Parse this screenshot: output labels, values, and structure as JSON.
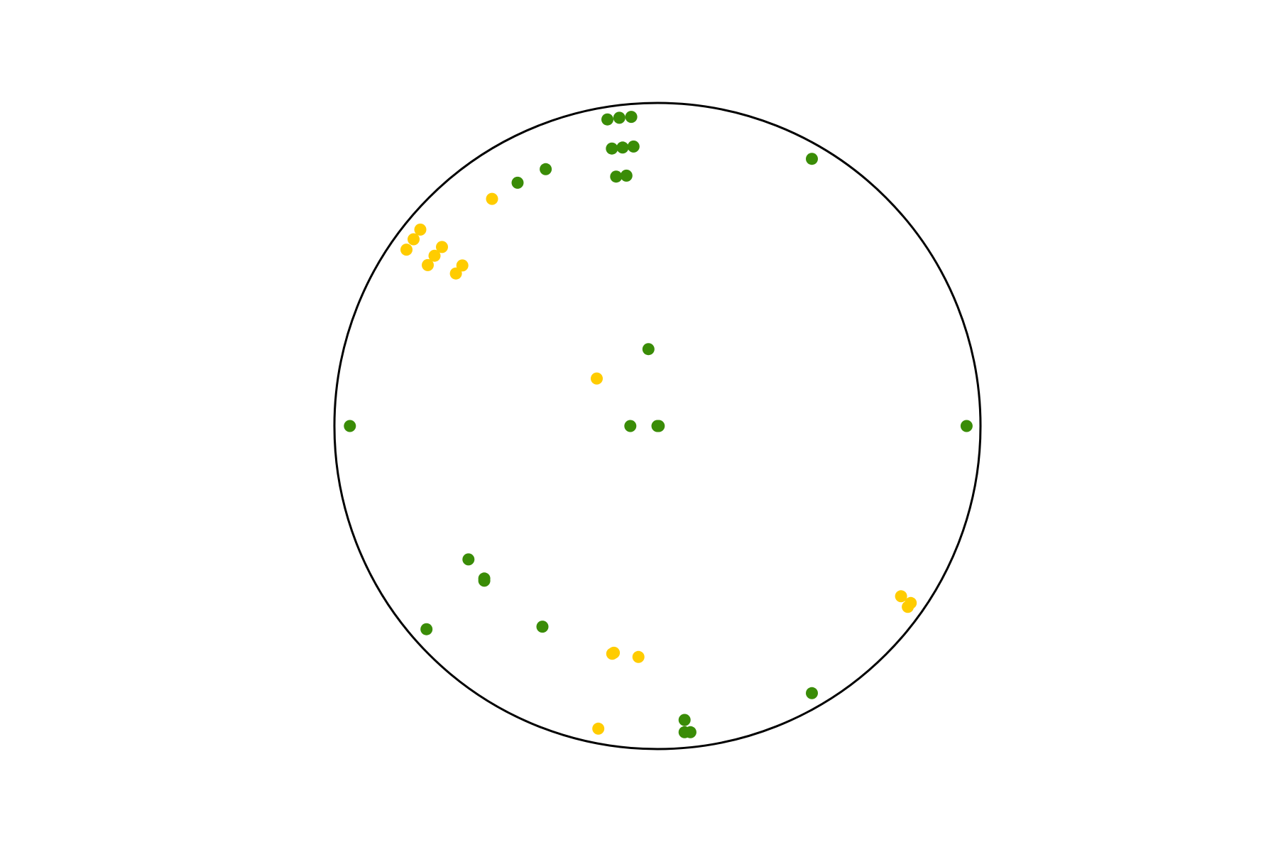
{
  "chart_data": {
    "type": "scatter",
    "coordinate_system": "stereonet",
    "title": "",
    "legend": "none",
    "grid": false,
    "colors": {
      "green": "#3a8c07",
      "yellow": "#ffcc00",
      "outline": "#000000",
      "background": "#ffffff"
    },
    "series": [
      {
        "color_key": "green",
        "points": [
          {
            "x": -0.155,
            "y": 0.949
          },
          {
            "x": -0.118,
            "y": 0.954
          },
          {
            "x": -0.081,
            "y": 0.957
          },
          {
            "x": -0.141,
            "y": 0.859
          },
          {
            "x": -0.108,
            "y": 0.862
          },
          {
            "x": -0.074,
            "y": 0.865
          },
          {
            "x": -0.128,
            "y": 0.772
          },
          {
            "x": -0.096,
            "y": 0.775
          },
          {
            "x": -0.346,
            "y": 0.795
          },
          {
            "x": -0.433,
            "y": 0.753
          },
          {
            "x": 0.478,
            "y": 0.827
          },
          {
            "x": -0.028,
            "y": 0.238
          },
          {
            "x": -0.952,
            "y": 0.0
          },
          {
            "x": -0.084,
            "y": 0.0
          },
          {
            "x": 0.0,
            "y": 0.0
          },
          {
            "x": 0.004,
            "y": 0.0
          },
          {
            "x": 0.957,
            "y": 0.0
          },
          {
            "x": -0.585,
            "y": -0.413
          },
          {
            "x": -0.536,
            "y": -0.472
          },
          {
            "x": -0.536,
            "y": -0.479
          },
          {
            "x": -0.715,
            "y": -0.629
          },
          {
            "x": -0.356,
            "y": -0.621
          },
          {
            "x": 0.478,
            "y": -0.827
          },
          {
            "x": 0.084,
            "y": -0.91
          },
          {
            "x": 0.084,
            "y": -0.948
          },
          {
            "x": 0.102,
            "y": -0.948
          }
        ]
      },
      {
        "color_key": "yellow",
        "points": [
          {
            "x": -0.512,
            "y": 0.703
          },
          {
            "x": -0.734,
            "y": 0.608
          },
          {
            "x": -0.755,
            "y": 0.578
          },
          {
            "x": -0.777,
            "y": 0.546
          },
          {
            "x": -0.667,
            "y": 0.554
          },
          {
            "x": -0.69,
            "y": 0.527
          },
          {
            "x": -0.711,
            "y": 0.498
          },
          {
            "x": -0.604,
            "y": 0.497
          },
          {
            "x": -0.624,
            "y": 0.472
          },
          {
            "x": -0.188,
            "y": 0.147
          },
          {
            "x": 0.754,
            "y": -0.527
          },
          {
            "x": 0.775,
            "y": -0.56
          },
          {
            "x": 0.784,
            "y": -0.548
          },
          {
            "x": -0.14,
            "y": -0.705
          },
          {
            "x": -0.135,
            "y": -0.702
          },
          {
            "x": -0.059,
            "y": -0.715
          },
          {
            "x": -0.183,
            "y": -0.937
          }
        ]
      }
    ]
  }
}
